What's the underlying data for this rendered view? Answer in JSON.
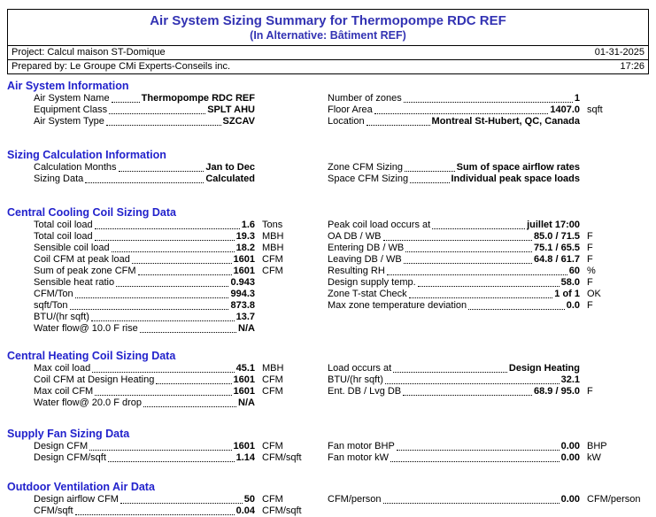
{
  "colors": {
    "title_blue": "#3333b3",
    "section_blue": "#2222cc"
  },
  "header": {
    "title": "Air System Sizing Summary for Thermopompe RDC REF",
    "subtitle": "(In Alternative: Bâtiment REF)",
    "project": "Project: Calcul maison ST-Domique",
    "date": "01-31-2025",
    "prepared_by": "Prepared by: Le Groupe CMi Experts-Conseils inc.",
    "time": "17:26"
  },
  "sections": [
    {
      "title": "Air System Information",
      "left": [
        {
          "label": "Air System Name",
          "value": "Thermopompe RDC REF",
          "unit": ""
        },
        {
          "label": "Equipment Class",
          "value": "SPLT AHU",
          "unit": ""
        },
        {
          "label": "Air System Type",
          "value": "SZCAV",
          "unit": ""
        }
      ],
      "right": [
        {
          "label": "Number of zones",
          "value": "1",
          "unit": ""
        },
        {
          "label": "Floor Area",
          "value": "1407.0",
          "unit": "sqft"
        },
        {
          "label": "Location",
          "value": "Montreal St-Hubert, QC, Canada",
          "unit": ""
        }
      ]
    },
    {
      "title": "Sizing Calculation Information",
      "left": [
        {
          "label": "Calculation Months",
          "value": "Jan to Dec",
          "unit": ""
        },
        {
          "label": "Sizing Data",
          "value": "Calculated",
          "unit": ""
        }
      ],
      "right": [
        {
          "label": "Zone CFM Sizing",
          "value": "Sum of space airflow rates",
          "unit": ""
        },
        {
          "label": "Space CFM Sizing",
          "value": "Individual peak space loads",
          "unit": ""
        }
      ]
    },
    {
      "title": "Central Cooling Coil Sizing Data",
      "left": [
        {
          "label": "Total coil load",
          "value": "1.6",
          "unit": "Tons"
        },
        {
          "label": "Total coil load",
          "value": "19.3",
          "unit": "MBH"
        },
        {
          "label": "Sensible coil load",
          "value": "18.2",
          "unit": "MBH"
        },
        {
          "label": "Coil CFM at peak load",
          "value": "1601",
          "unit": "CFM"
        },
        {
          "label": "Sum of peak zone CFM",
          "value": "1601",
          "unit": "CFM"
        },
        {
          "label": "Sensible heat ratio",
          "value": "0.943",
          "unit": ""
        },
        {
          "label": "CFM/Ton",
          "value": "994.3",
          "unit": ""
        },
        {
          "label": "sqft/Ton",
          "value": "873.8",
          "unit": ""
        },
        {
          "label": "BTU/(hr sqft)",
          "value": "13.7",
          "unit": ""
        },
        {
          "label": "Water flow@ 10.0 F rise",
          "value": "N/A",
          "unit": ""
        }
      ],
      "right": [
        {
          "label": "Peak coil load occurs at",
          "value": "juillet 17:00",
          "unit": ""
        },
        {
          "label": "OA DB / WB",
          "value": "85.0 / 71.5",
          "unit": "F"
        },
        {
          "label": "Entering DB / WB",
          "value": "75.1 / 65.5",
          "unit": "F"
        },
        {
          "label": "Leaving DB / WB",
          "value": "64.8 / 61.7",
          "unit": "F"
        },
        {
          "label": "Resulting RH",
          "value": "60",
          "unit": "%"
        },
        {
          "label": "Design supply temp.",
          "value": "58.0",
          "unit": "F"
        },
        {
          "label": "Zone T-stat Check",
          "value": "1 of 1",
          "unit": "OK"
        },
        {
          "label": "Max zone temperature deviation",
          "value": "0.0",
          "unit": "F"
        }
      ]
    },
    {
      "title": "Central Heating Coil Sizing Data",
      "left": [
        {
          "label": "Max coil load",
          "value": "45.1",
          "unit": "MBH"
        },
        {
          "label": "Coil CFM at Design Heating",
          "value": "1601",
          "unit": "CFM"
        },
        {
          "label": "Max coil CFM",
          "value": "1601",
          "unit": "CFM"
        },
        {
          "label": "Water flow@ 20.0 F drop",
          "value": "N/A",
          "unit": ""
        }
      ],
      "right": [
        {
          "label": "Load occurs at",
          "value": "Design Heating",
          "unit": ""
        },
        {
          "label": "BTU/(hr sqft)",
          "value": "32.1",
          "unit": ""
        },
        {
          "label": "Ent. DB / Lvg DB",
          "value": "68.9 / 95.0",
          "unit": "F"
        }
      ]
    },
    {
      "title": "Supply Fan Sizing Data",
      "left": [
        {
          "label": "Design CFM",
          "value": "1601",
          "unit": "CFM"
        },
        {
          "label": "Design CFM/sqft",
          "value": "1.14",
          "unit": "CFM/sqft"
        }
      ],
      "right": [
        {
          "label": "Fan motor BHP",
          "value": "0.00",
          "unit": "BHP"
        },
        {
          "label": "Fan motor kW",
          "value": "0.00",
          "unit": "kW"
        }
      ]
    },
    {
      "title": "Outdoor Ventilation Air Data",
      "left": [
        {
          "label": "Design airflow CFM",
          "value": "50",
          "unit": "CFM"
        },
        {
          "label": "CFM/sqft",
          "value": "0.04",
          "unit": "CFM/sqft"
        }
      ],
      "right": [
        {
          "label": "CFM/person",
          "value": "0.00",
          "unit": "CFM/person"
        }
      ]
    }
  ]
}
